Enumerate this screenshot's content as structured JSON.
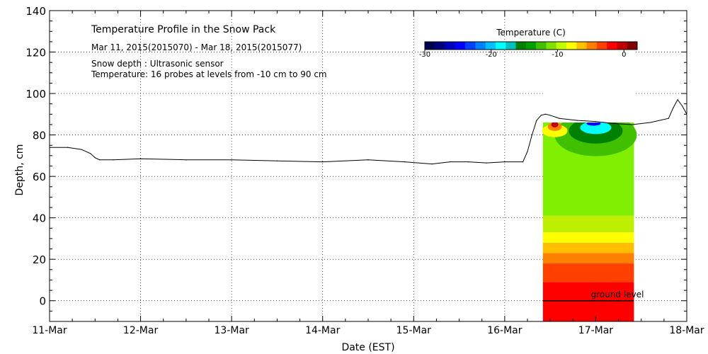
{
  "chart_data": {
    "type": "line",
    "title": "Temperature Profile in the Snow Pack",
    "subtitle": "Mar 11, 2015(2015070) - Mar 18, 2015(2015077)",
    "notes": [
      "Snow depth : Ultrasonic sensor",
      "Temperature: 16 probes at levels from -10 cm to 90 cm"
    ],
    "xlabel": "Date (EST)",
    "ylabel": "Depth, cm",
    "xlim": [
      0,
      7
    ],
    "ylim": [
      -10,
      140
    ],
    "x_tick_values": [
      0,
      1,
      2,
      3,
      4,
      5,
      6,
      7
    ],
    "x_tick_labels": [
      "11-Mar",
      "12-Mar",
      "13-Mar",
      "14-Mar",
      "15-Mar",
      "16-Mar",
      "17-Mar",
      "18-Mar"
    ],
    "y_ticks": [
      0,
      20,
      40,
      60,
      80,
      100,
      120,
      140
    ],
    "grid": true,
    "series": [
      {
        "name": "Snow depth",
        "color": "#000000",
        "x": [
          0,
          0.2,
          0.35,
          0.45,
          0.5,
          0.55,
          0.7,
          1.0,
          1.5,
          2.0,
          2.5,
          3.0,
          3.5,
          3.9,
          4.2,
          4.4,
          4.6,
          4.8,
          5.0,
          5.2,
          5.25,
          5.3,
          5.35,
          5.4,
          5.45,
          5.5,
          5.6,
          5.8,
          6.0,
          6.2,
          6.4,
          6.6,
          6.8,
          6.85,
          6.9,
          6.95,
          7.0
        ],
        "y": [
          74,
          74,
          73,
          71,
          69,
          68,
          68,
          68.5,
          68,
          68,
          67.5,
          67,
          68,
          67,
          66,
          67,
          67,
          66.5,
          67,
          67,
          72,
          80,
          87,
          89.5,
          90,
          89.5,
          88,
          87,
          86.5,
          85.5,
          85,
          86,
          88,
          93,
          97,
          94,
          90
        ]
      }
    ],
    "temperature_profile": {
      "x_range": [
        5.42,
        6.42
      ],
      "top_cm": 86,
      "bottom_cm": -10,
      "bands": [
        {
          "from": -10,
          "to": 9,
          "color": "#ff0000"
        },
        {
          "from": 9,
          "to": 18,
          "color": "#ff4000"
        },
        {
          "from": 18,
          "to": 23,
          "color": "#ff8000"
        },
        {
          "from": 23,
          "to": 28,
          "color": "#ffbf00"
        },
        {
          "from": 28,
          "to": 33,
          "color": "#ffff00"
        },
        {
          "from": 33,
          "to": 41,
          "color": "#bfef00"
        },
        {
          "from": 41,
          "to": 86,
          "color": "#80ef00"
        }
      ],
      "annotation": "ground level",
      "ground_level_cm": 0
    },
    "colorbar": {
      "title": "Temperature (C)",
      "min": -30,
      "max": 2,
      "tick_values": [
        -30,
        -20,
        -10,
        0
      ],
      "tick_labels": [
        "-30",
        "-20",
        "-10",
        "0"
      ],
      "colors": [
        "#000050",
        "#00007f",
        "#0000bf",
        "#0000ff",
        "#0040ff",
        "#0080ff",
        "#00c0ff",
        "#00ffff",
        "#00c0c0",
        "#008000",
        "#00a000",
        "#40c000",
        "#80e000",
        "#c0ff00",
        "#ffff00",
        "#ffc000",
        "#ff8000",
        "#ff4000",
        "#ff0000",
        "#c00000",
        "#800000"
      ]
    }
  }
}
